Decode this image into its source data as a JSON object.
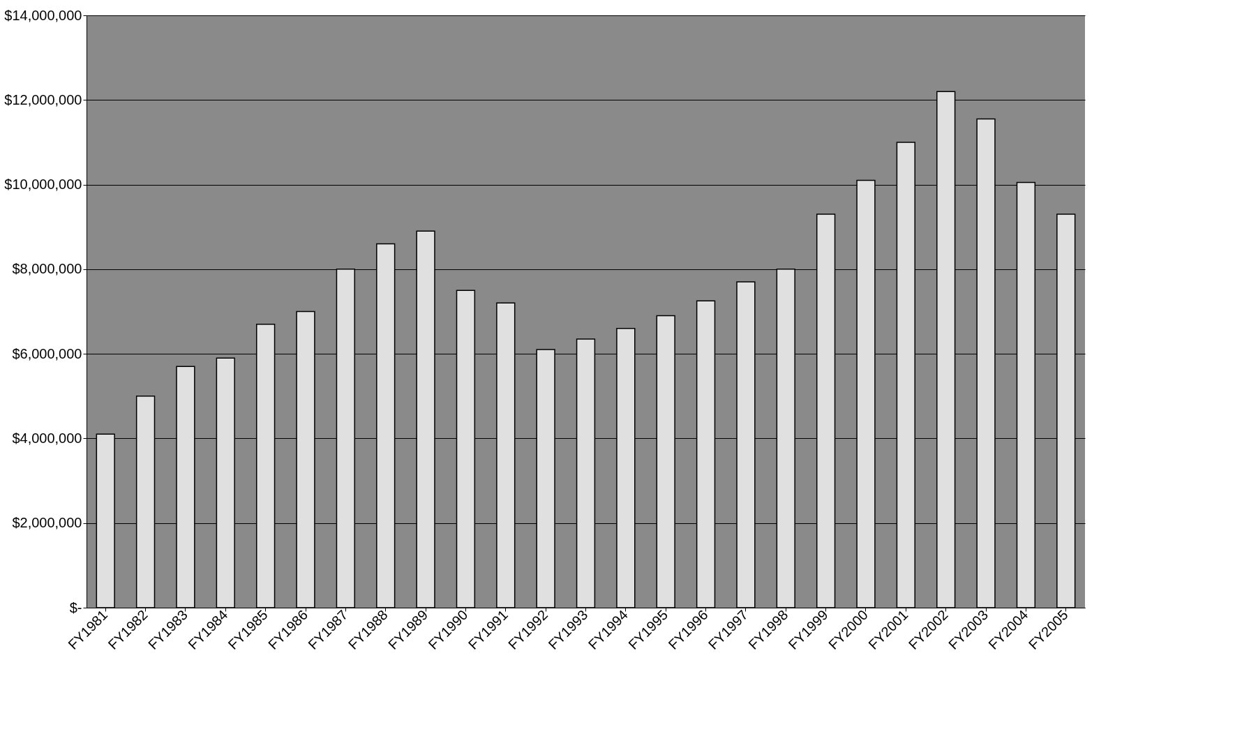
{
  "chart_data": {
    "type": "bar",
    "categories": [
      "FY1981",
      "FY1982",
      "FY1983",
      "FY1984",
      "FY1985",
      "FY1986",
      "FY1987",
      "FY1988",
      "FY1989",
      "FY1990",
      "FY1991",
      "FY1992",
      "FY1993",
      "FY1994",
      "FY1995",
      "FY1996",
      "FY1997",
      "FY1998",
      "FY1999",
      "FY2000",
      "FY2001",
      "FY2002",
      "FY2003",
      "FY2004",
      "FY2005"
    ],
    "values": [
      4100000,
      5000000,
      5700000,
      5900000,
      6700000,
      7000000,
      8000000,
      8600000,
      8900000,
      7500000,
      7200000,
      6100000,
      6350000,
      6600000,
      6900000,
      7250000,
      7700000,
      8000000,
      9300000,
      10100000,
      11000000,
      12200000,
      11550000,
      10050000,
      9300000
    ],
    "color": "#e0e0e0",
    "ylim": [
      0,
      14000000
    ],
    "yticks": [
      {
        "value": 0,
        "label": "$-"
      },
      {
        "value": 2000000,
        "label": "$2,000,000"
      },
      {
        "value": 4000000,
        "label": "$4,000,000"
      },
      {
        "value": 6000000,
        "label": "$6,000,000"
      },
      {
        "value": 8000000,
        "label": "$8,000,000"
      },
      {
        "value": 10000000,
        "label": "$10,000,000"
      },
      {
        "value": 12000000,
        "label": "$12,000,000"
      },
      {
        "value": 14000000,
        "label": "$14,000,000"
      }
    ],
    "grid": "y"
  }
}
